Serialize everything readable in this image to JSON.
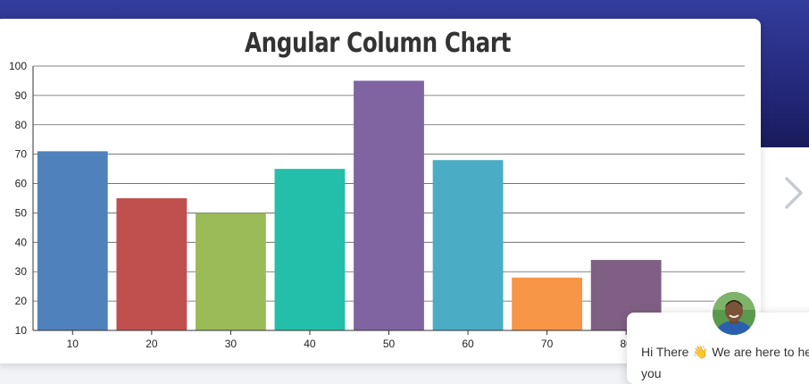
{
  "page": {
    "background_band_color": "#2a2f88",
    "card_background": "#ffffff"
  },
  "chart_data": {
    "type": "bar",
    "title": "Angular Column Chart",
    "xlabel": "",
    "ylabel": "",
    "categories": [
      "10",
      "20",
      "30",
      "40",
      "50",
      "60",
      "70",
      "80"
    ],
    "values": [
      71,
      55,
      50,
      65,
      95,
      68,
      28,
      34
    ],
    "colors": [
      "#4f81bc",
      "#c0504e",
      "#9bbb58",
      "#23bfaa",
      "#8064a1",
      "#4aacc5",
      "#f79647",
      "#7f6084"
    ],
    "ylim": [
      10,
      100
    ],
    "yticks": [
      10,
      20,
      30,
      40,
      50,
      60,
      70,
      80,
      90,
      100
    ],
    "grid": true,
    "legend": "none"
  },
  "navigation": {
    "next_icon": "chevron-right-icon"
  },
  "chat": {
    "greeting_prefix": "Hi There ",
    "wave_emoji": "👋",
    "greeting_suffix": " We are here to he",
    "line2": "you",
    "avatar_icon": "agent-avatar"
  }
}
